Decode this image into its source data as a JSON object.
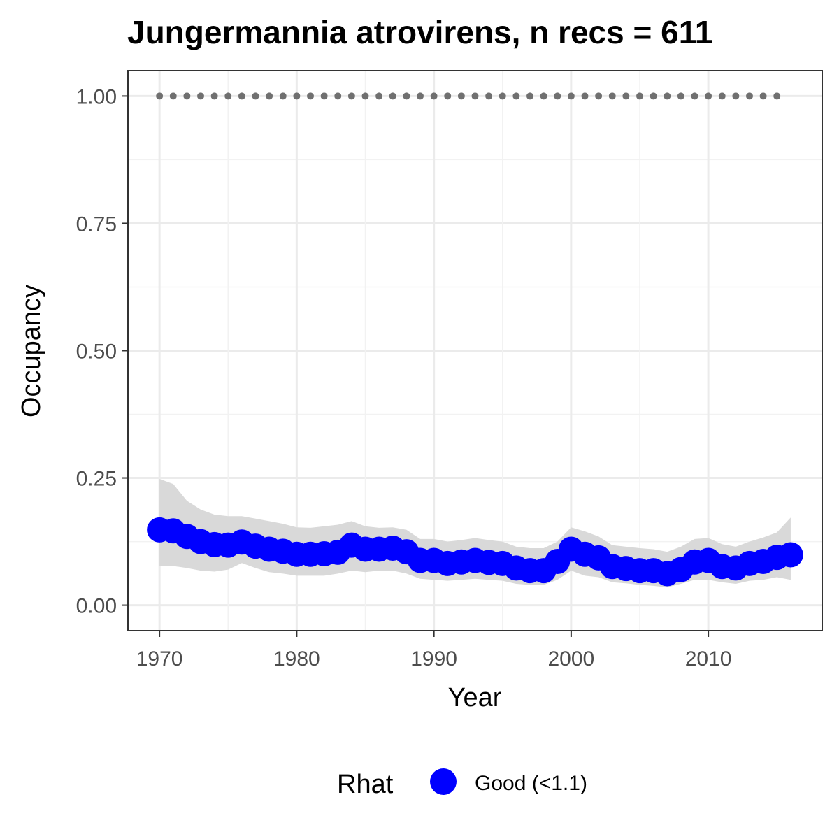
{
  "chart_data": {
    "type": "line",
    "title": "Jungermannia atrovirens, n recs = 611",
    "xlabel": "Year",
    "ylabel": "Occupancy",
    "xlim": [
      1967.7,
      2018.3
    ],
    "ylim": [
      -0.05,
      1.05
    ],
    "x_ticks": [
      1970,
      1980,
      1990,
      2000,
      2010
    ],
    "x_tick_labels": [
      "1970",
      "1980",
      "1990",
      "2000",
      "2010"
    ],
    "y_ticks": [
      0,
      0.25,
      0.5,
      0.75,
      1.0
    ],
    "y_tick_labels": [
      "0.00",
      "0.25",
      "0.50",
      "0.75",
      "1.00"
    ],
    "grid": true,
    "legend": {
      "position": "bottom",
      "title": "Rhat",
      "entries": [
        {
          "label": "Good (<1.1)",
          "color": "#0000ff"
        }
      ]
    },
    "colors": {
      "mean": "#0000ff",
      "ribbon": "#d9d9d9",
      "reference_points": "#707070"
    },
    "series": [
      {
        "kind": "mean",
        "x": [
          1970,
          1971,
          1972,
          1973,
          1974,
          1975,
          1976,
          1977,
          1978,
          1979,
          1980,
          1981,
          1982,
          1983,
          1984,
          1985,
          1986,
          1987,
          1988,
          1989,
          1990,
          1991,
          1992,
          1993,
          1994,
          1995,
          1996,
          1997,
          1998,
          1999,
          2000,
          2001,
          2002,
          2003,
          2004,
          2005,
          2006,
          2007,
          2008,
          2009,
          2010,
          2011,
          2012,
          2013,
          2014,
          2015,
          2016
        ],
        "y": [
          0.148,
          0.146,
          0.135,
          0.125,
          0.119,
          0.118,
          0.124,
          0.116,
          0.11,
          0.106,
          0.1,
          0.1,
          0.101,
          0.104,
          0.118,
          0.11,
          0.11,
          0.112,
          0.105,
          0.088,
          0.088,
          0.082,
          0.085,
          0.088,
          0.084,
          0.082,
          0.073,
          0.068,
          0.068,
          0.086,
          0.11,
          0.1,
          0.093,
          0.076,
          0.072,
          0.068,
          0.068,
          0.062,
          0.07,
          0.085,
          0.088,
          0.076,
          0.073,
          0.082,
          0.086,
          0.094,
          0.099
        ]
      },
      {
        "kind": "interval",
        "x": [
          1970,
          1971,
          1972,
          1973,
          1974,
          1975,
          1976,
          1977,
          1978,
          1979,
          1980,
          1981,
          1982,
          1983,
          1984,
          1985,
          1986,
          1987,
          1988,
          1989,
          1990,
          1991,
          1992,
          1993,
          1994,
          1995,
          1996,
          1997,
          1998,
          1999,
          2000,
          2001,
          2002,
          2003,
          2004,
          2005,
          2006,
          2007,
          2008,
          2009,
          2010,
          2011,
          2012,
          2013,
          2014,
          2015,
          2016
        ],
        "lower": [
          0.077,
          0.077,
          0.073,
          0.068,
          0.066,
          0.07,
          0.083,
          0.073,
          0.065,
          0.062,
          0.058,
          0.058,
          0.058,
          0.062,
          0.068,
          0.065,
          0.068,
          0.068,
          0.062,
          0.052,
          0.05,
          0.048,
          0.05,
          0.052,
          0.05,
          0.048,
          0.042,
          0.04,
          0.04,
          0.05,
          0.068,
          0.058,
          0.055,
          0.045,
          0.043,
          0.04,
          0.038,
          0.035,
          0.042,
          0.05,
          0.05,
          0.045,
          0.042,
          0.048,
          0.05,
          0.055,
          0.05
        ],
        "upper": [
          0.248,
          0.238,
          0.205,
          0.188,
          0.178,
          0.175,
          0.175,
          0.17,
          0.165,
          0.16,
          0.153,
          0.152,
          0.155,
          0.158,
          0.165,
          0.155,
          0.152,
          0.153,
          0.148,
          0.13,
          0.13,
          0.125,
          0.128,
          0.132,
          0.128,
          0.125,
          0.115,
          0.112,
          0.112,
          0.125,
          0.153,
          0.145,
          0.135,
          0.118,
          0.115,
          0.112,
          0.11,
          0.105,
          0.115,
          0.13,
          0.132,
          0.12,
          0.115,
          0.125,
          0.133,
          0.143,
          0.172
        ]
      },
      {
        "kind": "reference",
        "x": [
          1970,
          1971,
          1972,
          1973,
          1974,
          1975,
          1976,
          1977,
          1978,
          1979,
          1980,
          1981,
          1982,
          1983,
          1984,
          1985,
          1986,
          1987,
          1988,
          1989,
          1990,
          1991,
          1992,
          1993,
          1994,
          1995,
          1996,
          1997,
          1998,
          1999,
          2000,
          2001,
          2002,
          2003,
          2004,
          2005,
          2006,
          2007,
          2008,
          2009,
          2010,
          2011,
          2012,
          2013,
          2014,
          2015
        ],
        "y": [
          1,
          1,
          1,
          1,
          1,
          1,
          1,
          1,
          1,
          1,
          1,
          1,
          1,
          1,
          1,
          1,
          1,
          1,
          1,
          1,
          1,
          1,
          1,
          1,
          1,
          1,
          1,
          1,
          1,
          1,
          1,
          1,
          1,
          1,
          1,
          1,
          1,
          1,
          1,
          1,
          1,
          1,
          1,
          1,
          1,
          1
        ]
      }
    ]
  }
}
